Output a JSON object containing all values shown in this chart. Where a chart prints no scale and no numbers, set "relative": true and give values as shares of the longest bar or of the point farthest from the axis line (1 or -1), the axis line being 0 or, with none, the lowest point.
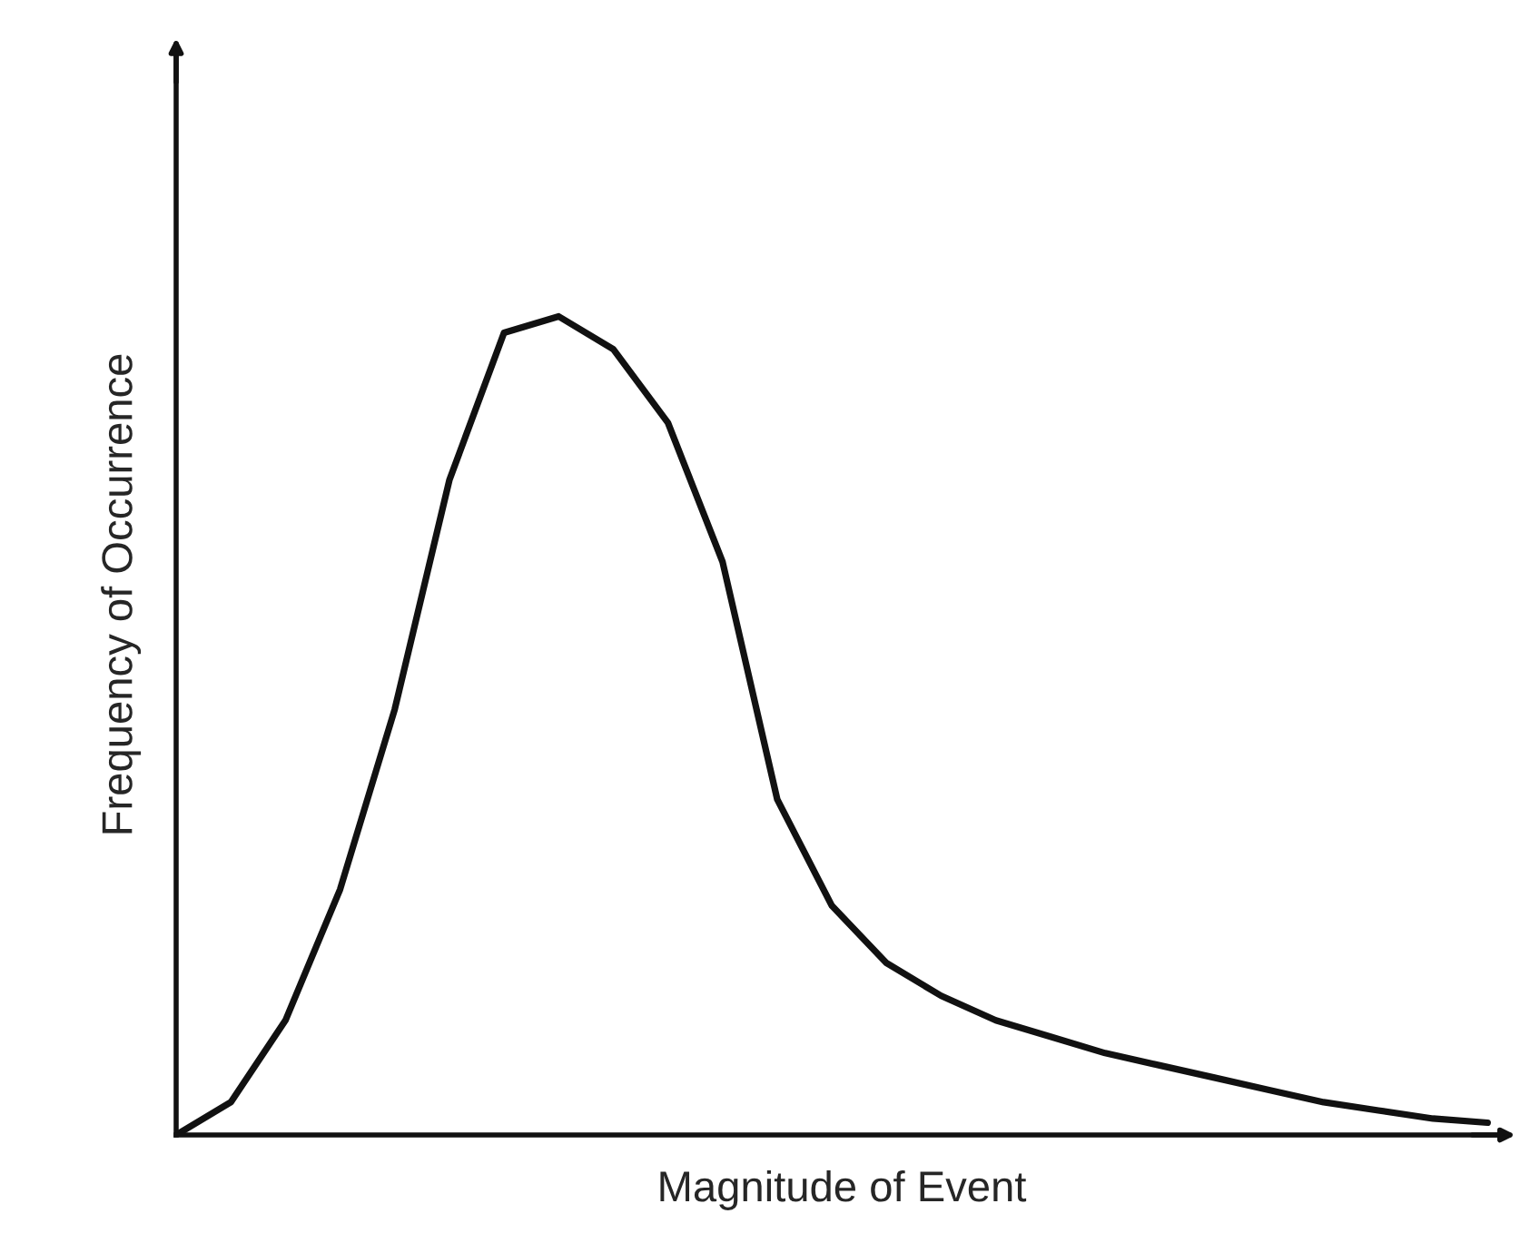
{
  "chart_data": {
    "type": "line",
    "relative": true,
    "xlabel": "Magnitude of Event",
    "ylabel": "Frequency of Occurrence",
    "categories": [
      null,
      null,
      null,
      null,
      null,
      null,
      null,
      null,
      null,
      null,
      null,
      null,
      null,
      null,
      null,
      null,
      null,
      null,
      null,
      null,
      null,
      null,
      null,
      null,
      null
    ],
    "series": [
      {
        "color": "#111111",
        "values": [
          0,
          0.04,
          0.14,
          0.3,
          0.52,
          0.8,
          0.98,
          1.0,
          0.96,
          0.87,
          0.7,
          0.41,
          0.28,
          0.21,
          0.17,
          0.14,
          0.12,
          0.1,
          0.085,
          0.07,
          0.055,
          0.04,
          0.03,
          0.02,
          0.015
        ]
      }
    ],
    "marker": "none",
    "line_style": "solid",
    "tick_labels": false
  }
}
